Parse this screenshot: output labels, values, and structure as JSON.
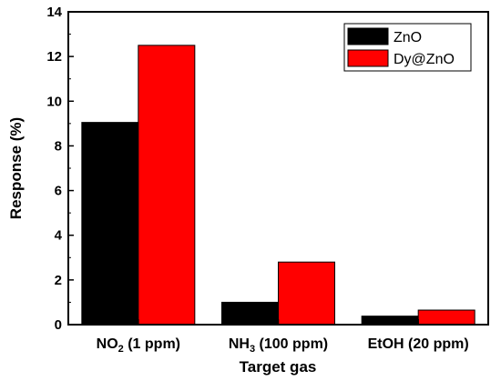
{
  "chart_data": {
    "type": "bar",
    "categories": [
      {
        "main": "NO",
        "sub": "2",
        "rest": " (1 ppm)"
      },
      {
        "main": "NH",
        "sub": "3",
        "rest": " (100 ppm)"
      },
      {
        "main": "EtOH (20 ppm)",
        "sub": "",
        "rest": ""
      }
    ],
    "series": [
      {
        "name": "ZnO",
        "color": "#000000",
        "values": [
          9.05,
          1.0,
          0.38
        ]
      },
      {
        "name": "Dy@ZnO",
        "color": "#ff0000",
        "values": [
          12.5,
          2.8,
          0.65
        ]
      }
    ],
    "xlabel": "Target gas",
    "ylabel": "Response (%)",
    "ylim": [
      0,
      14
    ],
    "yticks": [
      0,
      2,
      4,
      6,
      8,
      10,
      12,
      14
    ],
    "legend_position": "top-right",
    "grid": false
  }
}
